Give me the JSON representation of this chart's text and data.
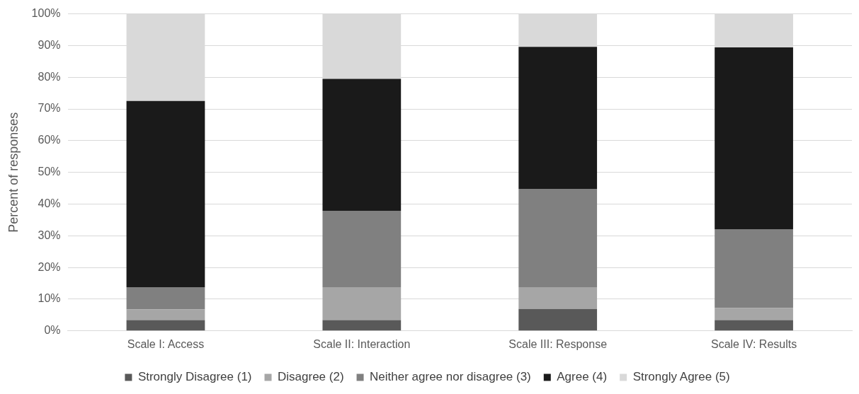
{
  "chart_data": {
    "type": "bar",
    "stacked": true,
    "ylabel": "Percent of responses",
    "categories": [
      "Scale I: Access",
      "Scale II: Interaction",
      "Scale III: Response",
      "Scale IV: Results"
    ],
    "series": [
      {
        "name": "Strongly Disagree (1)",
        "color": "#595959",
        "values": [
          3.4,
          3.4,
          6.9,
          3.4
        ]
      },
      {
        "name": "Disagree (2)",
        "color": "#a6a6a6",
        "values": [
          3.4,
          10.4,
          6.9,
          3.8
        ]
      },
      {
        "name": "Neither agree nor disagree (3)",
        "color": "#808080",
        "values": [
          7.0,
          24.1,
          31.0,
          24.9
        ]
      },
      {
        "name": "Agree (4)",
        "color": "#1a1a1a",
        "values": [
          58.7,
          41.6,
          44.8,
          57.3
        ]
      },
      {
        "name": "Strongly Agree (5)",
        "color": "#d9d9d9",
        "values": [
          27.5,
          20.5,
          10.4,
          10.6
        ]
      }
    ],
    "ylim": [
      0,
      100
    ],
    "yticks": [
      {
        "value": 0,
        "label": "0%"
      },
      {
        "value": 10,
        "label": "10%"
      },
      {
        "value": 20,
        "label": "20%"
      },
      {
        "value": 30,
        "label": "30%"
      },
      {
        "value": 40,
        "label": "40%"
      },
      {
        "value": 50,
        "label": "50%"
      },
      {
        "value": 60,
        "label": "60%"
      },
      {
        "value": 70,
        "label": "70%"
      },
      {
        "value": 80,
        "label": "80%"
      },
      {
        "value": 90,
        "label": "90%"
      },
      {
        "value": 100,
        "label": "100%"
      }
    ],
    "grid": "y",
    "legend": "bottom"
  }
}
